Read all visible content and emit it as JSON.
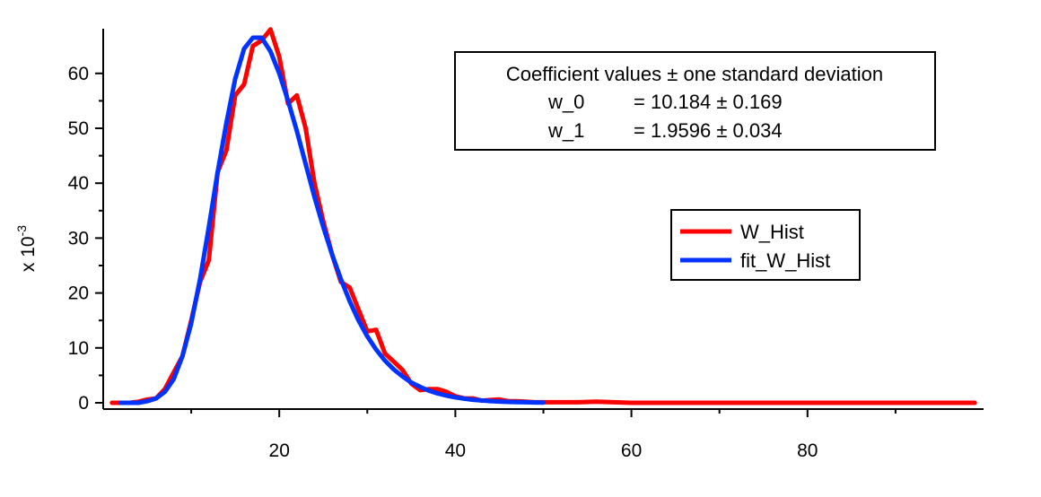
{
  "chart_data": {
    "type": "line",
    "xlim": [
      0,
      100
    ],
    "ylim": [
      0,
      70
    ],
    "xticks": [
      20,
      40,
      60,
      80
    ],
    "yticks": [
      0,
      10,
      20,
      30,
      40,
      50,
      60
    ],
    "x_tick_labels": [
      "20",
      "40",
      "60",
      "80"
    ],
    "y_tick_labels": [
      "0",
      "10",
      "20",
      "30",
      "40",
      "50",
      "60"
    ],
    "y_multiplier_label": {
      "prefix": "x 10",
      "exponent": "-3"
    },
    "grid": false,
    "legend_position": "right",
    "series": [
      {
        "name": "W_Hist",
        "color": "#ff0000",
        "x": [
          1,
          2,
          3,
          4,
          5,
          6,
          7,
          8,
          9,
          10,
          11,
          12,
          13,
          14,
          15,
          16,
          17,
          18,
          19,
          20,
          21,
          22,
          23,
          24,
          25,
          26,
          27,
          28,
          29,
          30,
          31,
          32,
          33,
          34,
          35,
          36,
          37,
          38,
          39,
          40,
          41,
          42,
          43,
          44,
          45,
          46,
          47,
          48,
          49,
          50,
          52,
          54,
          56,
          60,
          70,
          80,
          90,
          99
        ],
        "y": [
          0,
          0,
          0,
          0.2,
          0.6,
          0.8,
          2.5,
          5.5,
          8.5,
          15,
          22,
          26,
          42,
          46,
          56,
          58,
          65,
          66,
          68,
          63,
          54.5,
          56,
          50,
          40,
          33,
          27,
          22,
          21,
          17,
          13,
          13.3,
          9,
          7.5,
          6,
          3.5,
          2.3,
          2.5,
          2.5,
          2,
          1.2,
          0.8,
          0.8,
          0.4,
          0.5,
          0.6,
          0.3,
          0.3,
          0.2,
          0.1,
          0.1,
          0.1,
          0.1,
          0.2,
          0,
          0,
          0,
          0,
          0
        ]
      },
      {
        "name": "fit_W_Hist",
        "color": "#0033ff",
        "x": [
          2,
          3,
          4,
          5,
          6,
          7,
          8,
          9,
          10,
          11,
          12,
          13,
          14,
          15,
          16,
          17,
          18,
          19,
          20,
          21,
          22,
          23,
          24,
          25,
          26,
          27,
          28,
          29,
          30,
          31,
          32,
          33,
          34,
          35,
          36,
          37,
          38,
          39,
          40,
          41,
          42,
          43,
          44,
          45,
          46,
          47,
          48,
          49,
          50
        ],
        "y": [
          0,
          0,
          0,
          0.3,
          0.8,
          2,
          4.3,
          8.5,
          14.5,
          22.5,
          32,
          42,
          51,
          59,
          64.5,
          66.5,
          66.5,
          64,
          60,
          55,
          49.5,
          43.5,
          37.5,
          32,
          27,
          22.5,
          18.5,
          15,
          12.1,
          9.7,
          7.7,
          6.1,
          4.8,
          3.7,
          2.9,
          2.2,
          1.7,
          1.3,
          1,
          0.75,
          0.55,
          0.42,
          0.31,
          0.23,
          0.17,
          0.12,
          0.09,
          0.07,
          0.05
        ]
      }
    ],
    "annotation": {
      "title": "Coefficient values ± one standard deviation",
      "rows": [
        {
          "name": "w_0",
          "value": "= 10.184 ± 0.169"
        },
        {
          "name": "w_1",
          "value": "= 1.9596 ± 0.034"
        }
      ]
    }
  }
}
